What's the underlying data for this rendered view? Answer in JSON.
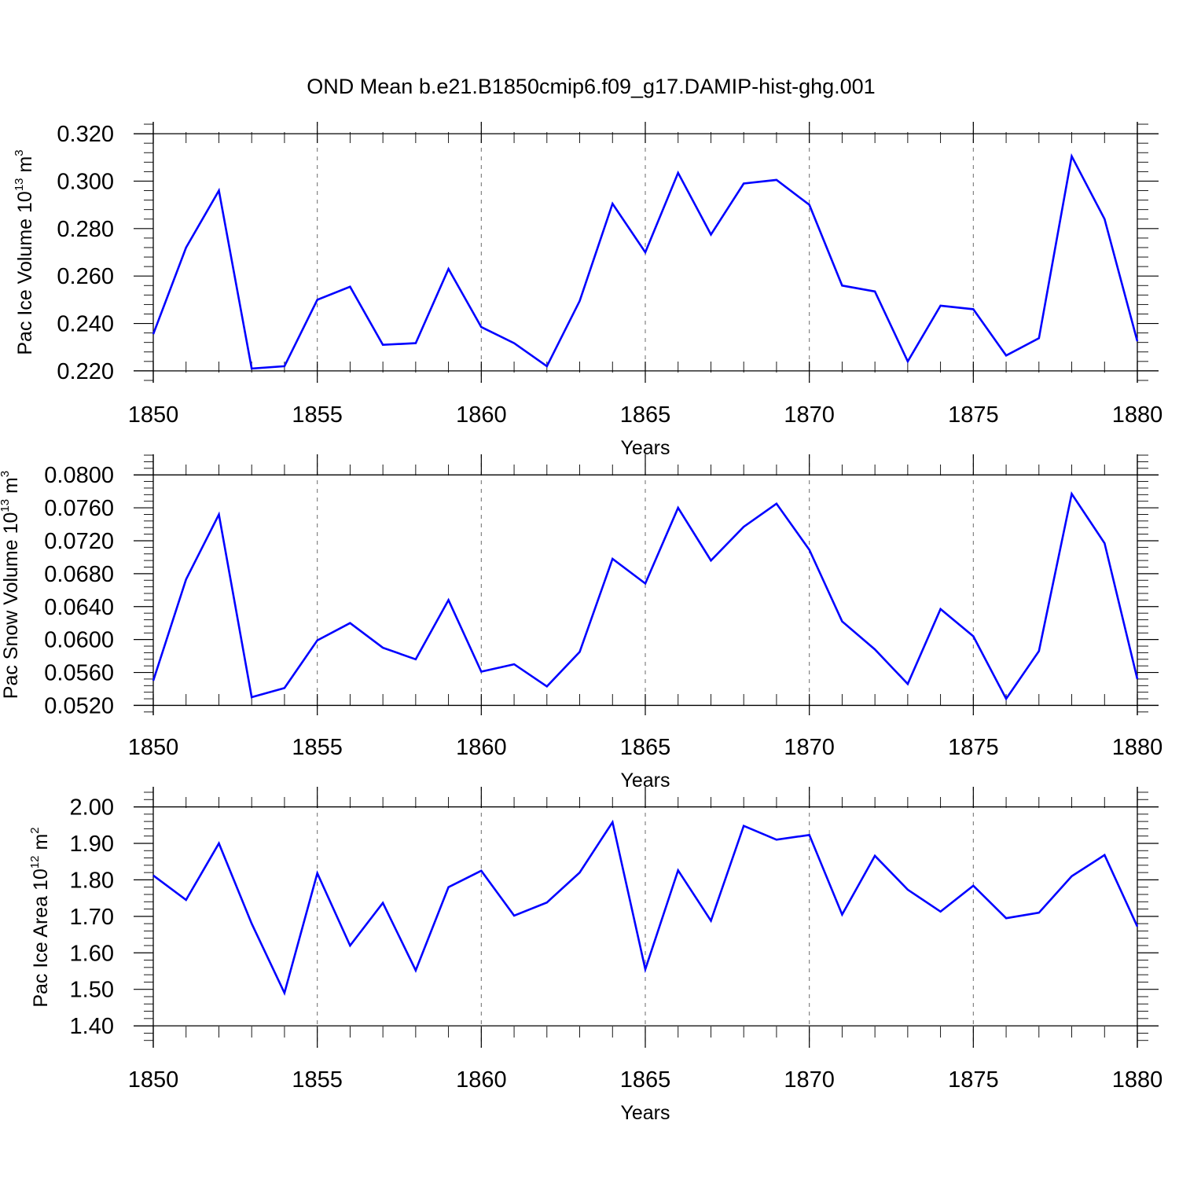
{
  "title": "OND Mean b.e21.B1850cmip6.f09_g17.DAMIP-hist-ghg.001",
  "colors": {
    "line": "#0000ff",
    "axis": "#000000",
    "grid": "#777777"
  },
  "chart_data": [
    {
      "type": "line",
      "ylabel": "Pac Ice Volume 10",
      "ylabel_exp": "13",
      "ylabel_unit": " m",
      "ylabel_unit_exp": "3",
      "xlabel": "Years",
      "xlim": [
        1850,
        1880
      ],
      "ylim": [
        0.215,
        0.325
      ],
      "ytick_values": [
        0.22,
        0.24,
        0.26,
        0.28,
        0.3,
        0.32
      ],
      "ytick_labels": [
        "0.220",
        "0.240",
        "0.260",
        "0.280",
        "0.300",
        "0.320"
      ],
      "xtick_values": [
        1850,
        1855,
        1860,
        1865,
        1870,
        1875,
        1880
      ],
      "xtick_labels": [
        "1850",
        "1855",
        "1860",
        "1865",
        "1870",
        "1875",
        "1880"
      ],
      "x": [
        1850,
        1851,
        1852,
        1853,
        1854,
        1855,
        1856,
        1857,
        1858,
        1859,
        1860,
        1861,
        1862,
        1863,
        1864,
        1865,
        1866,
        1867,
        1868,
        1869,
        1870,
        1871,
        1872,
        1873,
        1874,
        1875,
        1876,
        1877,
        1878,
        1879,
        1880
      ],
      "values": [
        0.2355,
        0.272,
        0.296,
        0.221,
        0.222,
        0.25,
        0.2555,
        0.231,
        0.2317,
        0.263,
        0.2385,
        0.2317,
        0.222,
        0.2495,
        0.2905,
        0.27,
        0.3035,
        0.2775,
        0.299,
        0.3005,
        0.29,
        0.256,
        0.2535,
        0.224,
        0.2475,
        0.246,
        0.2265,
        0.2338,
        0.3105,
        0.284,
        0.2325
      ]
    },
    {
      "type": "line",
      "ylabel": "Pac Snow Volume 10",
      "ylabel_exp": "13",
      "ylabel_unit": " m",
      "ylabel_unit_exp": "3",
      "xlabel": "Years",
      "xlim": [
        1850,
        1880
      ],
      "ylim": [
        0.0508,
        0.0825
      ],
      "ytick_values": [
        0.052,
        0.056,
        0.06,
        0.064,
        0.068,
        0.072,
        0.076,
        0.08
      ],
      "ytick_labels": [
        "0.0520",
        "0.0560",
        "0.0600",
        "0.0640",
        "0.0680",
        "0.0720",
        "0.0760",
        "0.0800"
      ],
      "xtick_values": [
        1850,
        1855,
        1860,
        1865,
        1870,
        1875,
        1880
      ],
      "xtick_labels": [
        "1850",
        "1855",
        "1860",
        "1865",
        "1870",
        "1875",
        "1880"
      ],
      "x": [
        1850,
        1851,
        1852,
        1853,
        1854,
        1855,
        1856,
        1857,
        1858,
        1859,
        1860,
        1861,
        1862,
        1863,
        1864,
        1865,
        1866,
        1867,
        1868,
        1869,
        1870,
        1871,
        1872,
        1873,
        1874,
        1875,
        1876,
        1877,
        1878,
        1879,
        1880
      ],
      "values": [
        0.055,
        0.0673,
        0.0752,
        0.053,
        0.0541,
        0.0599,
        0.062,
        0.059,
        0.0576,
        0.0648,
        0.0561,
        0.057,
        0.0543,
        0.0585,
        0.0698,
        0.0668,
        0.076,
        0.0696,
        0.0737,
        0.0765,
        0.0709,
        0.0622,
        0.0588,
        0.0546,
        0.0637,
        0.0604,
        0.0528,
        0.0586,
        0.0777,
        0.0717,
        0.0552
      ]
    },
    {
      "type": "line",
      "ylabel": "Pac Ice Area 10",
      "ylabel_exp": "12",
      "ylabel_unit": " m",
      "ylabel_unit_exp": "2",
      "xlabel": "Years",
      "xlim": [
        1850,
        1880
      ],
      "ylim": [
        1.34,
        2.055
      ],
      "ytick_values": [
        1.4,
        1.5,
        1.6,
        1.7,
        1.8,
        1.9,
        2.0
      ],
      "ytick_labels": [
        "1.40",
        "1.50",
        "1.60",
        "1.70",
        "1.80",
        "1.90",
        "2.00"
      ],
      "xtick_values": [
        1850,
        1855,
        1860,
        1865,
        1870,
        1875,
        1880
      ],
      "xtick_labels": [
        "1850",
        "1855",
        "1860",
        "1865",
        "1870",
        "1875",
        "1880"
      ],
      "x": [
        1850,
        1851,
        1852,
        1853,
        1854,
        1855,
        1856,
        1857,
        1858,
        1859,
        1860,
        1861,
        1862,
        1863,
        1864,
        1865,
        1866,
        1867,
        1868,
        1869,
        1870,
        1871,
        1872,
        1873,
        1874,
        1875,
        1876,
        1877,
        1878,
        1879,
        1880
      ],
      "values": [
        1.812,
        1.745,
        1.9,
        1.68,
        1.49,
        1.818,
        1.62,
        1.737,
        1.552,
        1.78,
        1.825,
        1.702,
        1.738,
        1.82,
        1.958,
        1.555,
        1.826,
        1.688,
        1.948,
        1.91,
        1.923,
        1.705,
        1.866,
        1.773,
        1.713,
        1.784,
        1.695,
        1.71,
        1.81,
        1.868,
        1.672
      ]
    }
  ]
}
